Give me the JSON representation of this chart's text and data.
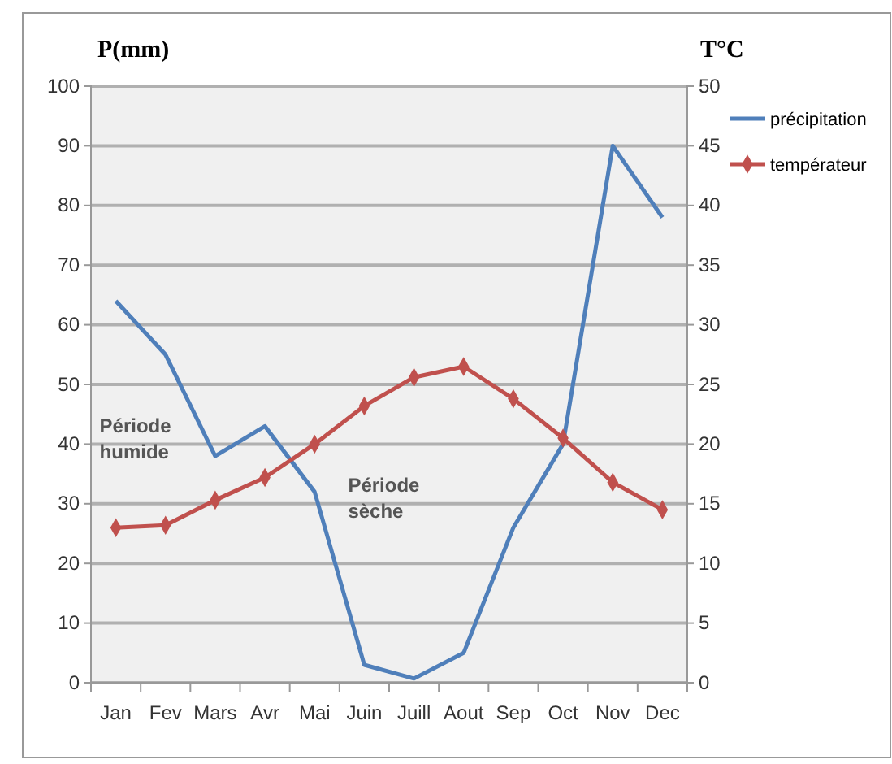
{
  "chart_data": {
    "type": "line",
    "ylabel": "P(mm)",
    "y2label": "T°C",
    "categories": [
      "Jan",
      "Fev",
      "Mars",
      "Avr",
      "Mai",
      "Juin",
      "Juill",
      "Aout",
      "Sep",
      "Oct",
      "Nov",
      "Dec"
    ],
    "series": [
      {
        "name": "précipitation",
        "color": "#4f7fba",
        "values": [
          64,
          55,
          38,
          43,
          32,
          3,
          0.7,
          5,
          26,
          40,
          90,
          78
        ],
        "marker": "none"
      },
      {
        "name": "températeur",
        "color": "#c0504d",
        "axis": "y2",
        "values": [
          13,
          13.2,
          15.3,
          17.2,
          20,
          23.2,
          25.6,
          26.5,
          23.8,
          20.5,
          16.8,
          14.5
        ],
        "marker": "diamond"
      }
    ],
    "ylim": [
      0,
      100
    ],
    "yticks": [
      0,
      10,
      20,
      30,
      40,
      50,
      60,
      70,
      80,
      90,
      100
    ],
    "y2lim": [
      0,
      50
    ],
    "y2ticks": [
      0,
      5,
      10,
      15,
      20,
      25,
      30,
      35,
      40,
      45,
      50
    ],
    "grid": "y",
    "legend": "top right",
    "annotations": [
      "Période humide",
      "Période sèche"
    ]
  }
}
